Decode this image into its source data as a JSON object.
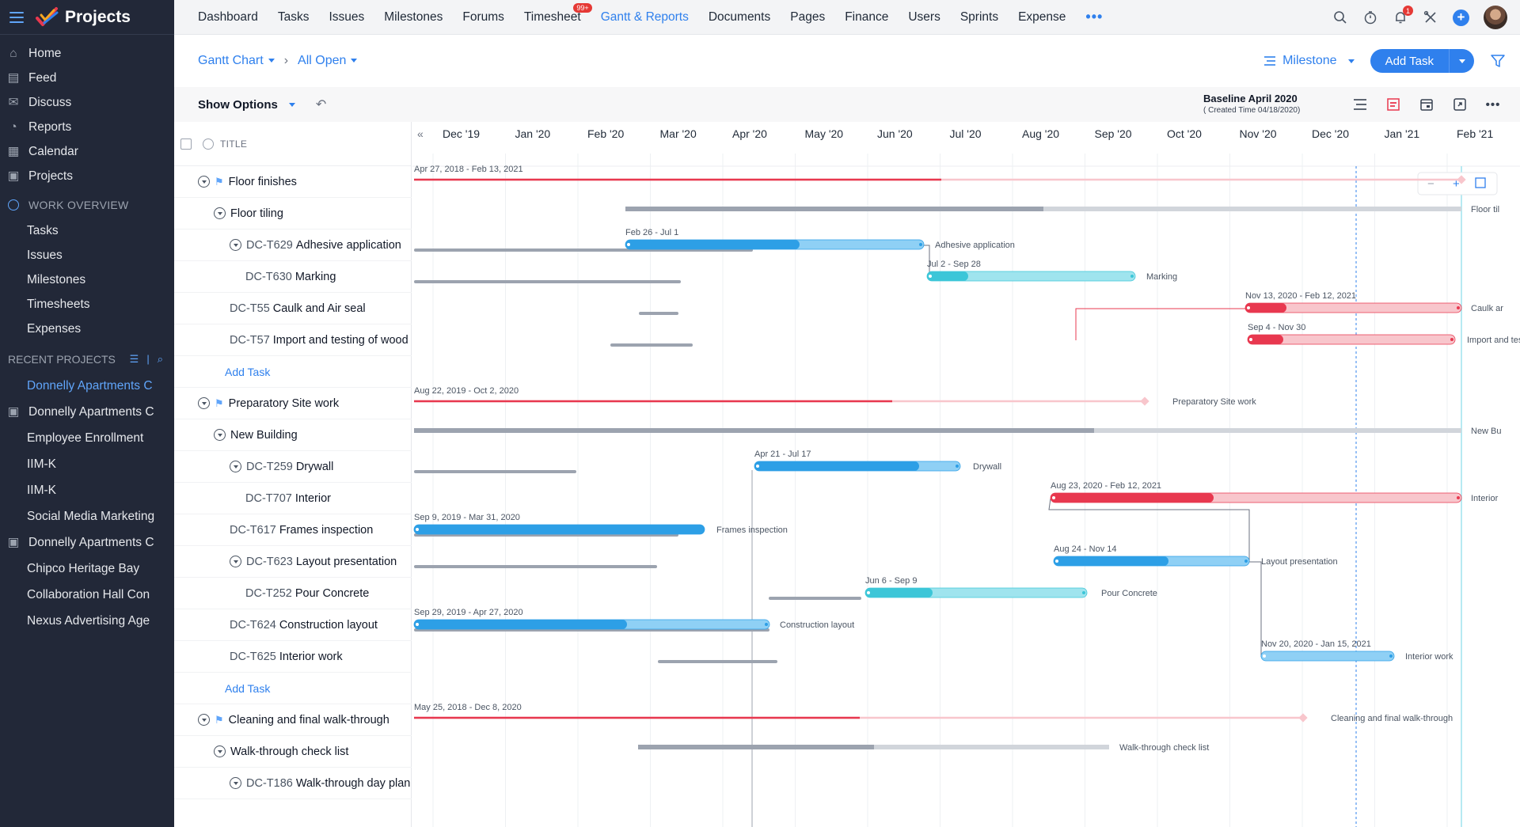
{
  "sidebar": {
    "title": "Projects",
    "nav": [
      {
        "label": "Home",
        "icon": "home-icon"
      },
      {
        "label": "Feed",
        "icon": "feed-icon"
      },
      {
        "label": "Discuss",
        "icon": "discuss-icon"
      },
      {
        "label": "Reports",
        "icon": "reports-icon"
      },
      {
        "label": "Calendar",
        "icon": "calendar-icon"
      },
      {
        "label": "Projects",
        "icon": "projects-icon"
      }
    ],
    "work_overview_label": "WORK OVERVIEW",
    "work_overview": [
      "Tasks",
      "Issues",
      "Milestones",
      "Timesheets",
      "Expenses"
    ],
    "recent_label": "RECENT PROJECTS",
    "recent": [
      {
        "label": "Donnelly Apartments C",
        "active": true,
        "icon": false
      },
      {
        "label": "Donnelly Apartments C",
        "active": false,
        "icon": true
      },
      {
        "label": "Employee Enrollment",
        "active": false,
        "icon": false
      },
      {
        "label": "IIM-K",
        "active": false,
        "icon": false
      },
      {
        "label": "IIM-K",
        "active": false,
        "icon": false
      },
      {
        "label": "Social Media Marketing",
        "active": false,
        "icon": false
      },
      {
        "label": "Donnelly Apartments C",
        "active": false,
        "icon": true
      },
      {
        "label": "Chipco Heritage Bay",
        "active": false,
        "icon": false
      },
      {
        "label": "Collaboration Hall Con",
        "active": false,
        "icon": false
      },
      {
        "label": "Nexus Advertising Age",
        "active": false,
        "icon": false
      }
    ]
  },
  "topnav": {
    "tabs": [
      "Dashboard",
      "Tasks",
      "Issues",
      "Milestones",
      "Forums",
      "Timesheet",
      "Gantt & Reports",
      "Documents",
      "Pages",
      "Finance",
      "Users",
      "Sprints",
      "Expense"
    ],
    "active_tab": "Gantt & Reports",
    "timesheet_badge": "99+",
    "more": "•••",
    "notification_count": "1"
  },
  "toolbar": {
    "view": "Gantt Chart",
    "filter": "All Open",
    "group_by": "Milestone",
    "add_task": "Add Task"
  },
  "options": {
    "show_options": "Show Options",
    "baseline_title": "Baseline April 2020",
    "baseline_created": "( Created Time 04/18/2020)"
  },
  "tasklist": {
    "header": "TITLE",
    "rows": [
      {
        "level": 0,
        "type": "milestone",
        "code": "",
        "title": "Floor finishes",
        "toggle": true
      },
      {
        "level": 1,
        "type": "tasklist",
        "code": "",
        "title": "Floor tiling",
        "toggle": true
      },
      {
        "level": 2,
        "type": "task",
        "code": "DC-T629",
        "title": "Adhesive application",
        "toggle": true
      },
      {
        "level": 3,
        "type": "task",
        "code": "DC-T630",
        "title": "Marking",
        "toggle": false
      },
      {
        "level": 1.5,
        "type": "task",
        "code": "DC-T55",
        "title": "Caulk and Air seal",
        "toggle": false
      },
      {
        "level": 1.5,
        "type": "task",
        "code": "DC-T57",
        "title": "Import and testing of wood",
        "toggle": false
      },
      {
        "level": 1.5,
        "type": "add",
        "code": "",
        "title": "Add Task",
        "toggle": false
      },
      {
        "level": 0,
        "type": "milestone",
        "code": "",
        "title": "Preparatory Site work",
        "toggle": true
      },
      {
        "level": 1,
        "type": "tasklist",
        "code": "",
        "title": "New Building",
        "toggle": true
      },
      {
        "level": 2,
        "type": "task",
        "code": "DC-T259",
        "title": "Drywall",
        "toggle": true
      },
      {
        "level": 3,
        "type": "task",
        "code": "DC-T707",
        "title": "Interior",
        "toggle": false
      },
      {
        "level": 1.5,
        "type": "task",
        "code": "DC-T617",
        "title": "Frames inspection",
        "toggle": false
      },
      {
        "level": 2,
        "type": "task",
        "code": "DC-T623",
        "title": "Layout presentation",
        "toggle": true
      },
      {
        "level": 3,
        "type": "task",
        "code": "DC-T252",
        "title": "Pour Concrete",
        "toggle": false
      },
      {
        "level": 1.5,
        "type": "task",
        "code": "DC-T624",
        "title": "Construction layout",
        "toggle": false
      },
      {
        "level": 1.5,
        "type": "task",
        "code": "DC-T625",
        "title": "Interior work",
        "toggle": false
      },
      {
        "level": 1.5,
        "type": "add",
        "code": "",
        "title": "Add Task",
        "toggle": false
      },
      {
        "level": 0,
        "type": "milestone",
        "code": "",
        "title": "Cleaning and final walk-through",
        "toggle": true
      },
      {
        "level": 1,
        "type": "tasklist",
        "code": "",
        "title": "Walk-through check list",
        "toggle": true
      },
      {
        "level": 2,
        "type": "task",
        "code": "DC-T186",
        "title": "Walk-through day plan",
        "toggle": true
      }
    ]
  },
  "gantt": {
    "months": [
      "Dec '19",
      "Jan '20",
      "Feb '20",
      "Mar '20",
      "Apr '20",
      "May '20",
      "Jun '20",
      "Jul '20",
      "Aug '20",
      "Sep '20",
      "Oct '20",
      "Nov '20",
      "Dec '20",
      "Jan '21",
      "Feb '21"
    ],
    "colors": {
      "red": "#e8384f",
      "red_light": "#f8c6cc",
      "blue": "#2d9fe6",
      "blue_light": "#8fd0f5",
      "teal": "#3cc6d8",
      "teal_light": "#9fe4ee",
      "gray": "#9ca3af",
      "gray_light": "#d1d5db"
    },
    "bars": [
      {
        "row": 0,
        "kind": "milestone",
        "date_label": "Apr 27, 2018 - Feb 13, 2021",
        "name": ""
      },
      {
        "row": 1,
        "kind": "tasklist",
        "date_label": "",
        "name": "Floor til"
      },
      {
        "row": 2,
        "kind": "task",
        "color": "blue",
        "date_label": "Feb 26 - Jul 1",
        "name": "Adhesive application"
      },
      {
        "row": 3,
        "kind": "task",
        "color": "teal",
        "date_label": "Jul 2 - Sep 28",
        "name": "Marking"
      },
      {
        "row": 4,
        "kind": "task",
        "color": "red",
        "date_label": "Nov 13, 2020 - Feb 12, 2021",
        "name": "Caulk ar"
      },
      {
        "row": 5,
        "kind": "task",
        "color": "red",
        "date_label": "Sep 4 - Nov 30",
        "name": "Import and testing of wooden materials"
      },
      {
        "row": 7,
        "kind": "milestone",
        "date_label": "Aug 22, 2019 - Oct 2, 2020",
        "name": "Preparatory Site work"
      },
      {
        "row": 8,
        "kind": "tasklist",
        "date_label": "",
        "name": "New Bu"
      },
      {
        "row": 9,
        "kind": "task",
        "color": "blue",
        "date_label": "Apr 21 - Jul 17",
        "name": "Drywall"
      },
      {
        "row": 10,
        "kind": "task",
        "color": "red",
        "date_label": "Aug 23, 2020 - Feb 12, 2021",
        "name": "Interior"
      },
      {
        "row": 11,
        "kind": "task",
        "color": "blue",
        "date_label": "Sep 9, 2019 - Mar 31, 2020",
        "name": "Frames inspection"
      },
      {
        "row": 12,
        "kind": "task",
        "color": "blue",
        "date_label": "Aug 24 - Nov 14",
        "name": "Layout presentation"
      },
      {
        "row": 13,
        "kind": "task",
        "color": "teal",
        "date_label": "Jun 6 - Sep 9",
        "name": "Pour Concrete"
      },
      {
        "row": 14,
        "kind": "task",
        "color": "blue",
        "date_label": "Sep 29, 2019 - Apr 27, 2020",
        "name": "Construction layout"
      },
      {
        "row": 15,
        "kind": "task",
        "color": "blue",
        "date_label": "Nov 20, 2020 - Jan 15, 2021",
        "name": "Interior work"
      },
      {
        "row": 17,
        "kind": "milestone",
        "date_label": "May 25, 2018 - Dec 8, 2020",
        "name": "Cleaning and final walk-through"
      },
      {
        "row": 18,
        "kind": "tasklist",
        "date_label": "",
        "name": "Walk-through check list"
      }
    ],
    "zoom_minus": "−",
    "zoom_plus": "+"
  }
}
